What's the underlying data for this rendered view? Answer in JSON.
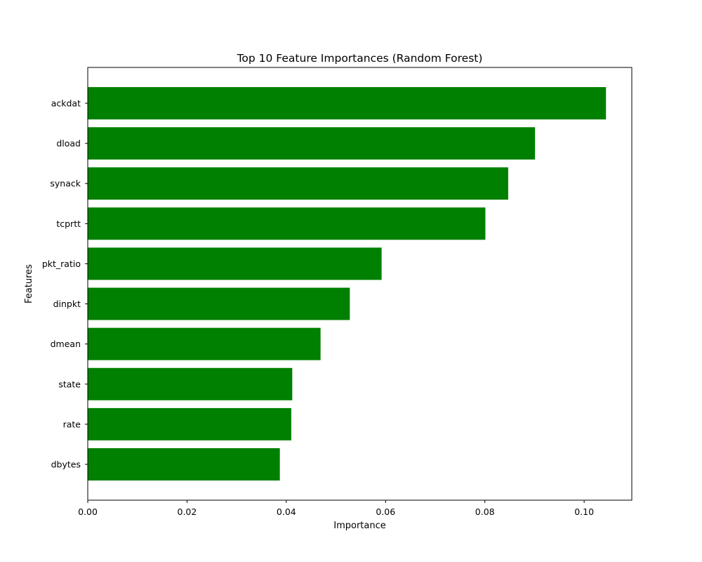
{
  "chart_data": {
    "type": "bar",
    "orientation": "horizontal",
    "title": "Top 10 Feature Importances (Random Forest)",
    "xlabel": "Importance",
    "ylabel": "Features",
    "categories": [
      "ackdat",
      "dload",
      "synack",
      "tcprtt",
      "pkt_ratio",
      "dinpkt",
      "dmean",
      "state",
      "rate",
      "dbytes"
    ],
    "values": [
      0.1044,
      0.0901,
      0.0847,
      0.0801,
      0.0592,
      0.0528,
      0.0469,
      0.0412,
      0.041,
      0.0387
    ],
    "xlim": [
      0,
      0.1096
    ],
    "xticks": [
      0.0,
      0.02,
      0.04,
      0.06,
      0.08,
      0.1
    ],
    "xtick_labels": [
      "0.00",
      "0.02",
      "0.04",
      "0.06",
      "0.08",
      "0.10"
    ],
    "bar_color": "#008000",
    "grid": false,
    "legend": "none"
  }
}
